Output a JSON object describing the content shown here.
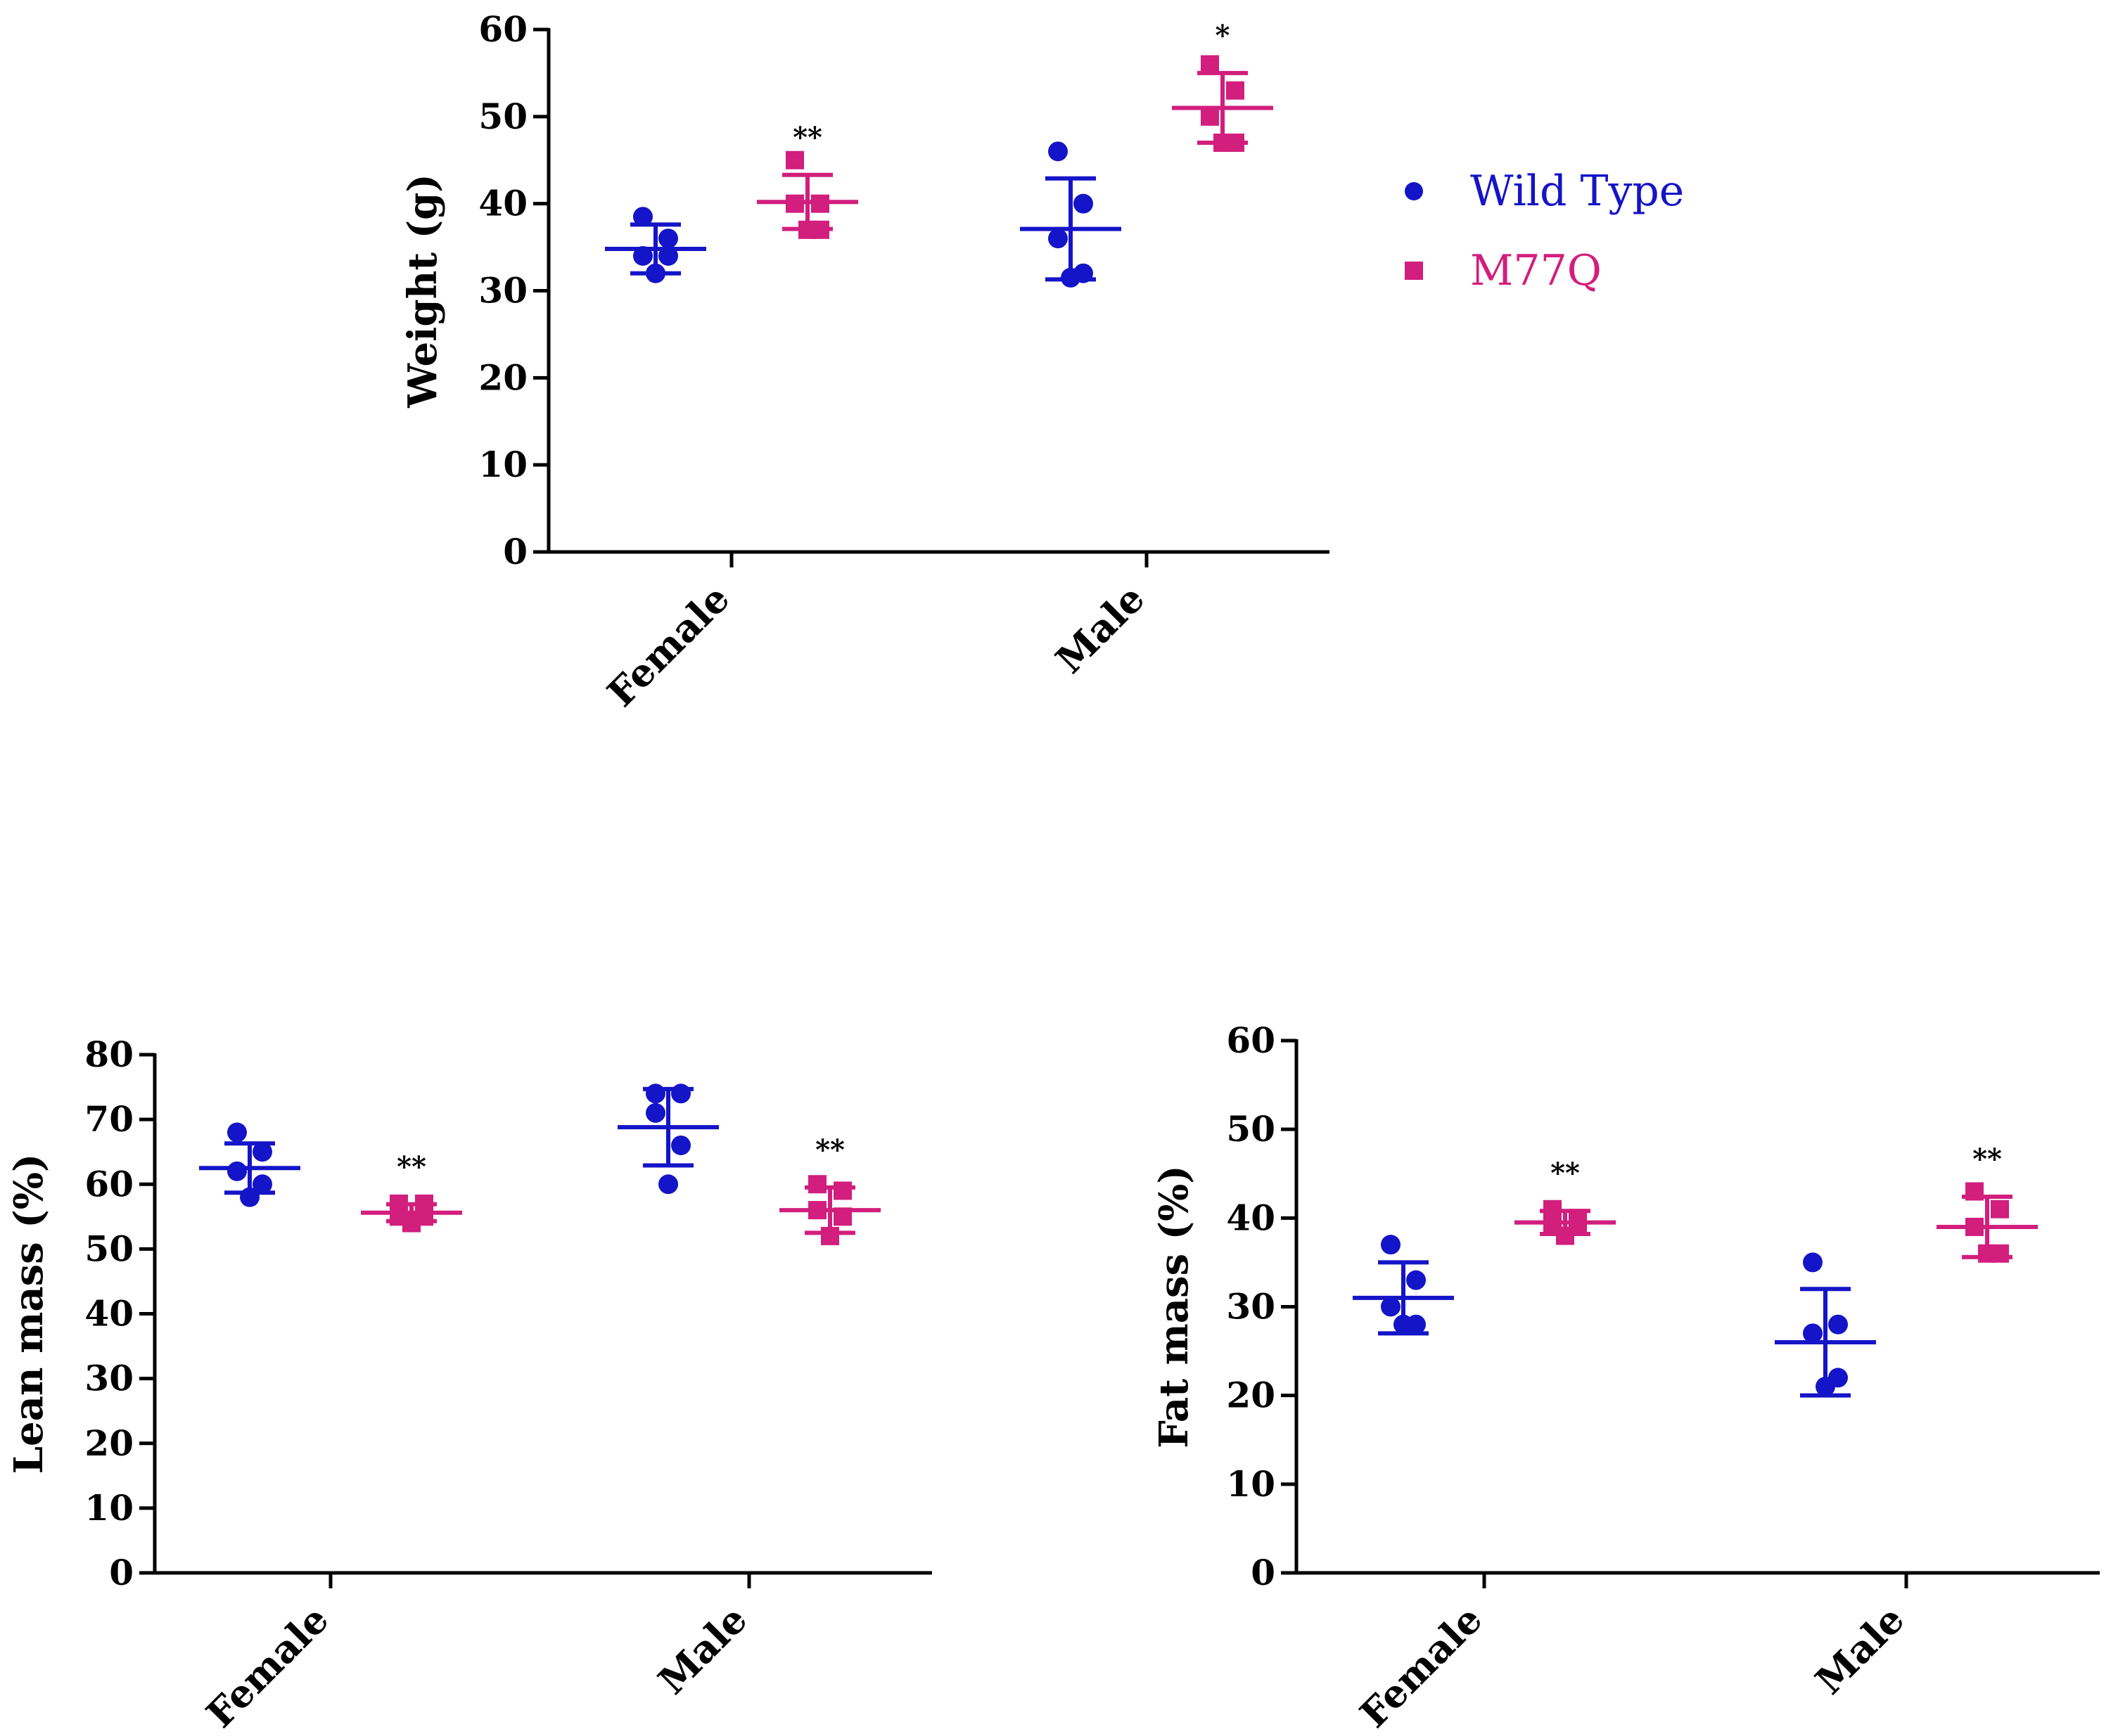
{
  "colors": {
    "wild_type": "#1414c8",
    "m77q": "#d21e7d",
    "axis": "#000000"
  },
  "legend": {
    "position": "right of top chart",
    "entries": [
      {
        "name": "Wild Type",
        "marker": "circle",
        "color_key": "wild_type"
      },
      {
        "name": "M77Q",
        "marker": "square",
        "color_key": "m77q"
      }
    ]
  },
  "chart_data": [
    {
      "id": "weight",
      "type": "scatter",
      "title": "",
      "xlabel": "",
      "ylabel": "Weight (g)",
      "ylim": [
        0,
        60
      ],
      "yticks": [
        0,
        10,
        20,
        30,
        40,
        50,
        60
      ],
      "categories": [
        "Female",
        "Male"
      ],
      "series": [
        {
          "name": "Wild Type",
          "marker": "circle",
          "groups": [
            {
              "category": "Female",
              "points": [
                38.5,
                36,
                34,
                34,
                32
              ],
              "mean": 34.8,
              "sd": 2.8,
              "significance": ""
            },
            {
              "category": "Male",
              "points": [
                46,
                40,
                36,
                32,
                31.5
              ],
              "mean": 37.1,
              "sd": 5.8,
              "significance": ""
            }
          ]
        },
        {
          "name": "M77Q",
          "marker": "square",
          "groups": [
            {
              "category": "Female",
              "points": [
                45,
                40,
                40,
                37,
                37
              ],
              "mean": 40.2,
              "sd": 3.1,
              "significance": "**"
            },
            {
              "category": "Male",
              "points": [
                56,
                53,
                50,
                47,
                47
              ],
              "mean": 51,
              "sd": 4,
              "significance": "*"
            }
          ]
        }
      ]
    },
    {
      "id": "lean",
      "type": "scatter",
      "title": "",
      "xlabel": "",
      "ylabel": "Lean mass (%)",
      "ylim": [
        0,
        80
      ],
      "yticks": [
        0,
        10,
        20,
        30,
        40,
        50,
        60,
        70,
        80
      ],
      "categories": [
        "Female",
        "Male"
      ],
      "series": [
        {
          "name": "Wild Type",
          "marker": "circle",
          "groups": [
            {
              "category": "Female",
              "points": [
                68,
                65,
                62,
                60,
                58
              ],
              "mean": 62.5,
              "sd": 3.8,
              "significance": ""
            },
            {
              "category": "Male",
              "points": [
                74,
                74,
                71,
                66,
                60
              ],
              "mean": 68.8,
              "sd": 5.9,
              "significance": ""
            }
          ]
        },
        {
          "name": "M77Q",
          "marker": "square",
          "groups": [
            {
              "category": "Female",
              "points": [
                57,
                57,
                55,
                55,
                54
              ],
              "mean": 55.6,
              "sd": 1.3,
              "significance": "**"
            },
            {
              "category": "Male",
              "points": [
                60,
                59,
                56,
                55,
                52
              ],
              "mean": 56,
              "sd": 3.5,
              "significance": "**"
            }
          ]
        }
      ]
    },
    {
      "id": "fat",
      "type": "scatter",
      "title": "",
      "xlabel": "",
      "ylabel": "Fat mass  (%)",
      "ylim": [
        0,
        60
      ],
      "yticks": [
        0,
        10,
        20,
        30,
        40,
        50,
        60
      ],
      "categories": [
        "Female",
        "Male"
      ],
      "series": [
        {
          "name": "Wild Type",
          "marker": "circle",
          "groups": [
            {
              "category": "Female",
              "points": [
                37,
                33,
                30,
                28,
                28
              ],
              "mean": 31,
              "sd": 4,
              "significance": ""
            },
            {
              "category": "Male",
              "points": [
                35,
                28,
                27,
                22,
                21
              ],
              "mean": 26,
              "sd": 6,
              "significance": ""
            }
          ]
        },
        {
          "name": "M77Q",
          "marker": "square",
          "groups": [
            {
              "category": "Female",
              "points": [
                41,
                40,
                39,
                39,
                38
              ],
              "mean": 39.5,
              "sd": 1.3,
              "significance": "**"
            },
            {
              "category": "Male",
              "points": [
                43,
                41,
                39,
                36,
                36
              ],
              "mean": 39,
              "sd": 3.4,
              "significance": "**"
            }
          ]
        }
      ]
    }
  ]
}
